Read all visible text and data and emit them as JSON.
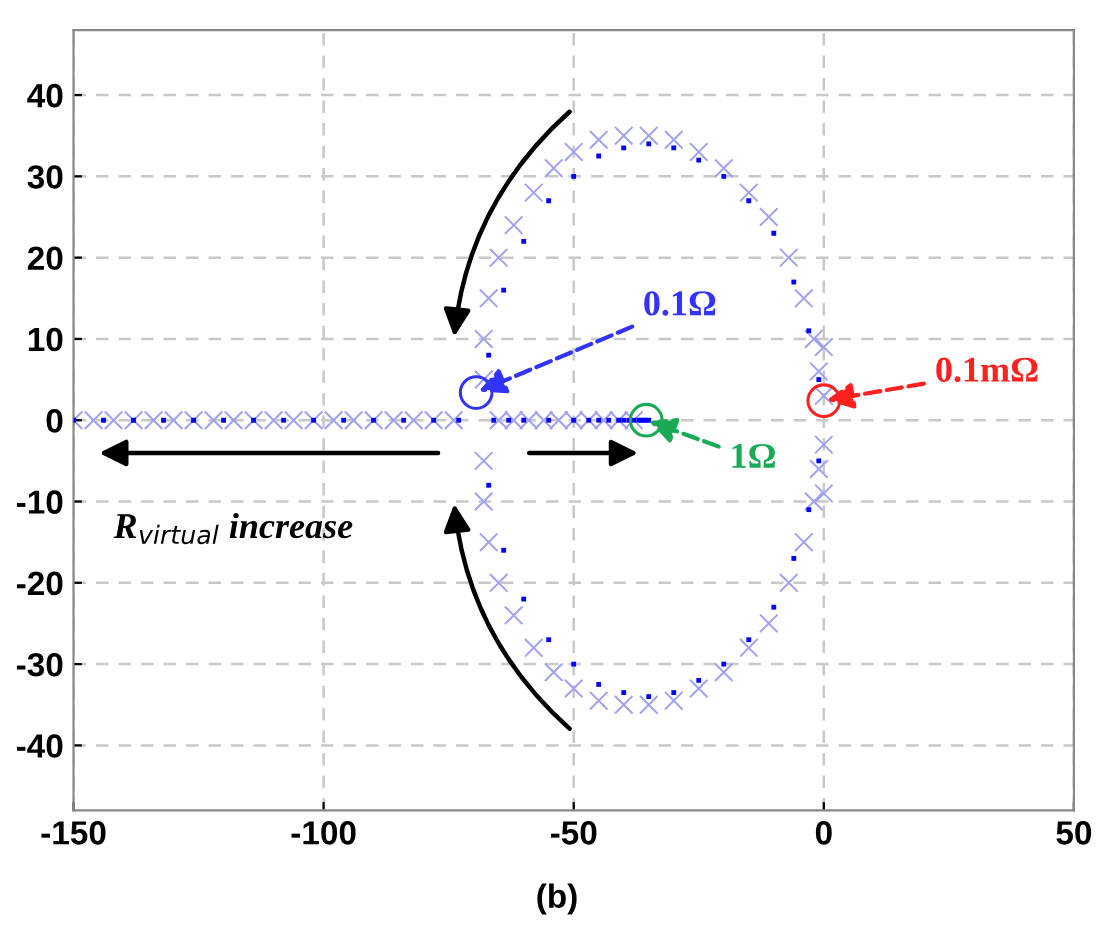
{
  "chart_data": {
    "type": "scatter",
    "xlim": [
      -150,
      50
    ],
    "ylim": [
      -48,
      48
    ],
    "xticks": [
      -150,
      -100,
      -50,
      0,
      50
    ],
    "yticks": [
      -40,
      -30,
      -20,
      -10,
      0,
      10,
      20,
      30,
      40
    ],
    "grid": true,
    "series": [
      {
        "color": "#a0a0f0",
        "marker": "cross",
        "x": [
          -150,
          -146,
          -142,
          -138,
          -134,
          -130,
          -126,
          -122,
          -118,
          -114,
          -110,
          -106,
          -102,
          -98,
          -94,
          -90,
          -86,
          -82,
          -78,
          -74,
          -65,
          -62,
          -59,
          -56,
          -53,
          -50,
          -47,
          -44,
          -41,
          -38,
          -68,
          -68,
          -67,
          -65,
          -62,
          -58,
          -54,
          -50,
          -45,
          -40,
          -35,
          -30,
          -25,
          -20,
          -15,
          -11,
          -7,
          -4,
          -2,
          -1,
          0,
          0,
          -68,
          -68,
          -67,
          -65,
          -62,
          -58,
          -54,
          -50,
          -45,
          -40,
          -35,
          -30,
          -25,
          -20,
          -15,
          -11,
          -7,
          -4,
          -2,
          -1,
          0,
          0
        ],
        "values": [
          0,
          0,
          0,
          0,
          0,
          0,
          0,
          0,
          0,
          0,
          0,
          0,
          0,
          0,
          0,
          0,
          0,
          0,
          0,
          0,
          0,
          0,
          0,
          0,
          0,
          0,
          0,
          0,
          0,
          0,
          5,
          10,
          15,
          20,
          24,
          28,
          31,
          33,
          34.5,
          35,
          35,
          34.5,
          33,
          31,
          28,
          25,
          20,
          15,
          10,
          6,
          3,
          9,
          -5,
          -10,
          -15,
          -20,
          -24,
          -28,
          -31,
          -33,
          -34.5,
          -35,
          -35,
          -34.5,
          -33,
          -31,
          -28,
          -25,
          -20,
          -15,
          -10,
          -6,
          -3,
          -9
        ]
      },
      {
        "color": "#0000ff",
        "marker": "square",
        "x": [
          -150,
          -144,
          -138,
          -132,
          -126,
          -120,
          -114,
          -108,
          -102,
          -96,
          -90,
          -84,
          -78,
          -73,
          -66,
          -63,
          -60,
          -55,
          -50,
          -47,
          -45,
          -43,
          -41,
          -40,
          -39,
          -38,
          -37,
          -36.5,
          -36,
          -35.5,
          -35,
          -67,
          -64,
          -60,
          -55,
          -50,
          -45,
          -40,
          -35,
          -30,
          -25,
          -20,
          -15,
          -10,
          -6,
          -3,
          -1,
          -67,
          -64,
          -60,
          -55,
          -50,
          -45,
          -40,
          -35,
          -30,
          -25,
          -20,
          -15,
          -10,
          -6,
          -3,
          -1
        ],
        "values": [
          0,
          0,
          0,
          0,
          0,
          0,
          0,
          0,
          0,
          0,
          0,
          0,
          0,
          0,
          0,
          0,
          0,
          0,
          0,
          0,
          0,
          0,
          0,
          0,
          0,
          0,
          0,
          0,
          0,
          0,
          0,
          8,
          16,
          22,
          27,
          30,
          32.5,
          33.5,
          34,
          33.5,
          32,
          30,
          27,
          23,
          17,
          11,
          5,
          -8,
          -16,
          -22,
          -27,
          -30,
          -32.5,
          -33.5,
          -34,
          -33.5,
          -32,
          -30,
          -27,
          -23,
          -17,
          -11,
          -5
        ]
      },
      {
        "color": "#3333ff",
        "marker": "circle",
        "x": [
          -69.5
        ],
        "values": [
          3.4
        ]
      },
      {
        "color": "#1aaa55",
        "marker": "circle",
        "x": [
          -35.5
        ],
        "values": [
          0
        ]
      },
      {
        "color": "#ff2020",
        "marker": "circle",
        "x": [
          0
        ],
        "values": [
          2.4
        ]
      }
    ],
    "annotations": [
      {
        "text": "0.1Ω",
        "x": -69.5,
        "y": 3.4
      },
      {
        "text": "1Ω",
        "x": -35.5,
        "y": 0
      },
      {
        "text": "0.1mΩ",
        "x": 0,
        "y": 2.4
      },
      "R$_{virtual}$ increase",
      "(b)"
    ]
  }
}
